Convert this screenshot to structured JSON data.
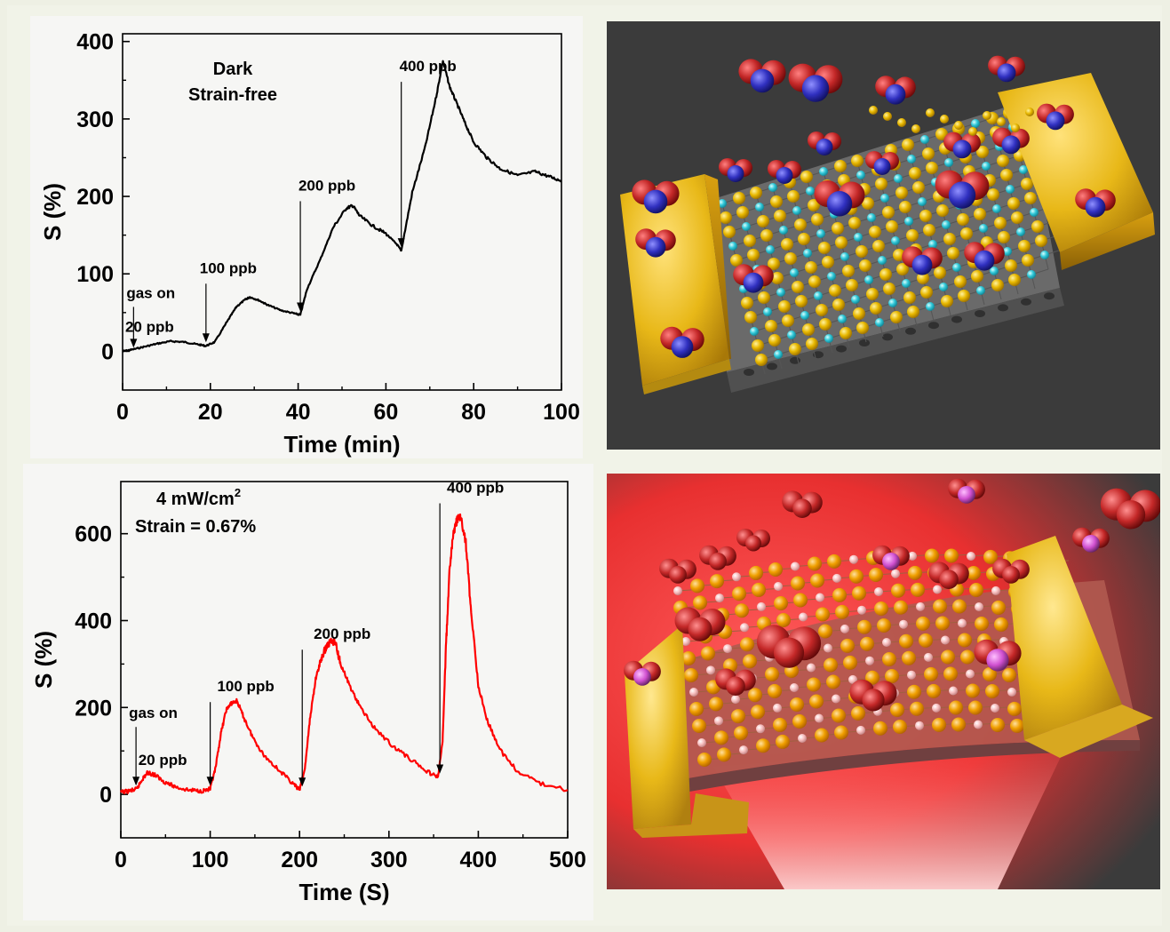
{
  "chart_data": [
    {
      "type": "line",
      "xlabel": "Time (min)",
      "ylabel": "S (%)",
      "xlim": [
        0,
        100
      ],
      "ylim": [
        -50,
        410
      ],
      "xticks": [
        "0",
        "20",
        "40",
        "60",
        "80",
        "100"
      ],
      "yticks": [
        "0",
        "100",
        "200",
        "300",
        "400"
      ],
      "condition_lines": [
        "Dark",
        "Strain-free"
      ],
      "color": "#000000",
      "series": [
        {
          "x": [
            0,
            2,
            5,
            8,
            11,
            14,
            17,
            19,
            21,
            24,
            26,
            28,
            29,
            31,
            33,
            36,
            39,
            40.5,
            42,
            45,
            48,
            51,
            52.5,
            54,
            57,
            60,
            62.5,
            63.5,
            66,
            69,
            71.5,
            73,
            74.5,
            76,
            78,
            80,
            83,
            86,
            90,
            94,
            97,
            100
          ],
          "y": [
            0,
            2,
            6,
            10,
            13,
            12,
            9,
            7,
            12,
            40,
            58,
            67,
            70,
            66,
            60,
            53,
            49,
            47,
            80,
            118,
            160,
            185,
            188,
            175,
            162,
            152,
            138,
            130,
            205,
            265,
            330,
            375,
            342,
            322,
            295,
            270,
            250,
            236,
            227,
            232,
            226,
            220
          ]
        }
      ],
      "annotations": [
        {
          "text": "gas on",
          "x": 2.5,
          "y": 0
        },
        {
          "text": "20 ppb",
          "x": 2.5,
          "y": 0
        },
        {
          "text": "100 ppb",
          "x": 19,
          "y": 7
        },
        {
          "text": "200 ppb",
          "x": 40.5,
          "y": 47
        },
        {
          "text": "400 ppb",
          "x": 63.5,
          "y": 130
        }
      ]
    },
    {
      "type": "line",
      "xlabel": "Time (S)",
      "ylabel": "S (%)",
      "xlim": [
        0,
        500
      ],
      "ylim": [
        -100,
        720
      ],
      "xticks": [
        "0",
        "100",
        "200",
        "300",
        "400",
        "500"
      ],
      "yticks": [
        "0",
        "200",
        "400",
        "600"
      ],
      "condition_lines": [
        "4 mW/cm",
        "Strain = 0.67%"
      ],
      "condition_superscript": "2",
      "color": "#ff0000",
      "series": [
        {
          "x": [
            0,
            10,
            18,
            24,
            30,
            38,
            48,
            60,
            75,
            90,
            100,
            106,
            112,
            118,
            124,
            130,
            138,
            148,
            160,
            175,
            190,
            200,
            206,
            212,
            218,
            224,
            230,
            236,
            240,
            246,
            256,
            268,
            285,
            305,
            325,
            345,
            355,
            360,
            364,
            368,
            372,
            376,
            380,
            386,
            392,
            400,
            410,
            425,
            445,
            470,
            500
          ],
          "y": [
            5,
            8,
            12,
            35,
            50,
            45,
            30,
            18,
            10,
            8,
            12,
            60,
            140,
            195,
            210,
            215,
            175,
            130,
            90,
            60,
            30,
            10,
            60,
            180,
            265,
            310,
            340,
            355,
            350,
            300,
            250,
            200,
            150,
            110,
            80,
            50,
            40,
            120,
            350,
            520,
            600,
            630,
            640,
            580,
            420,
            250,
            170,
            100,
            50,
            25,
            10
          ]
        }
      ],
      "annotations": [
        {
          "text": "gas on",
          "x": 17,
          "y": 12
        },
        {
          "text": "20 ppb",
          "x": 17,
          "y": 12
        },
        {
          "text": "100 ppb",
          "x": 100,
          "y": 12
        },
        {
          "text": "200 ppb",
          "x": 203,
          "y": 10
        },
        {
          "text": "400 ppb",
          "x": 357,
          "y": 40
        }
      ]
    }
  ],
  "illustrations": [
    {
      "name": "sensor-dark-illustration",
      "background": "#3b3b3b",
      "electrode_color": "#e8b818",
      "atom_colors": [
        "#e8b800",
        "#30c8d8"
      ],
      "molecule_colors": [
        "#c42828",
        "#3030c0"
      ]
    },
    {
      "name": "sensor-illuminated-illustration",
      "background": "#3b3b3b",
      "glow_color": "#ff3030",
      "electrode_color": "#e8b818",
      "atom_colors": [
        "#f0a000",
        "#f8c0c0"
      ],
      "molecule_colors": [
        "#c42828",
        "#e060e0"
      ]
    }
  ]
}
